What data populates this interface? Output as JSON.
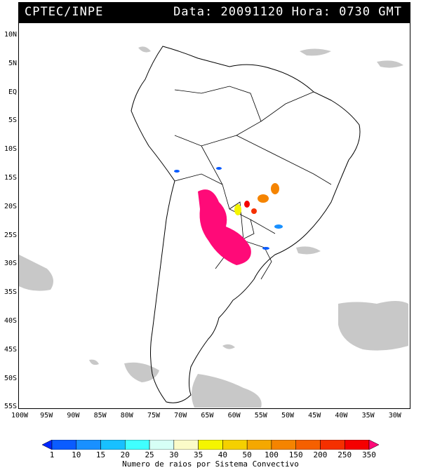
{
  "header": {
    "org": "CPTEC/INPE",
    "data_label": "Data:",
    "date": "20091120",
    "hora_label": "Hora:",
    "time": "0730",
    "tz": "GMT"
  },
  "lat_labels": [
    "10N",
    "5N",
    "EQ",
    "5S",
    "10S",
    "15S",
    "20S",
    "25S",
    "30S",
    "35S",
    "40S",
    "45S",
    "50S",
    "55S"
  ],
  "lon_labels": [
    "100W",
    "95W",
    "90W",
    "85W",
    "80W",
    "75W",
    "70W",
    "65W",
    "60W",
    "55W",
    "50W",
    "45W",
    "40W",
    "35W",
    "30W"
  ],
  "colorbar": {
    "labels": [
      "1",
      "10",
      "15",
      "20",
      "25",
      "30",
      "35",
      "40",
      "50",
      "100",
      "150",
      "200",
      "250",
      "350"
    ],
    "colors": [
      "#0026ff",
      "#0a5cff",
      "#1990ff",
      "#18c0ff",
      "#40ffff",
      "#d6fff6",
      "#fbfbc8",
      "#f5f500",
      "#f5d000",
      "#f5a800",
      "#f58400",
      "#f56000",
      "#f53000",
      "#f50000",
      "#ff0a78"
    ],
    "title": "Numero de raios por Sistema Convectivo"
  }
}
